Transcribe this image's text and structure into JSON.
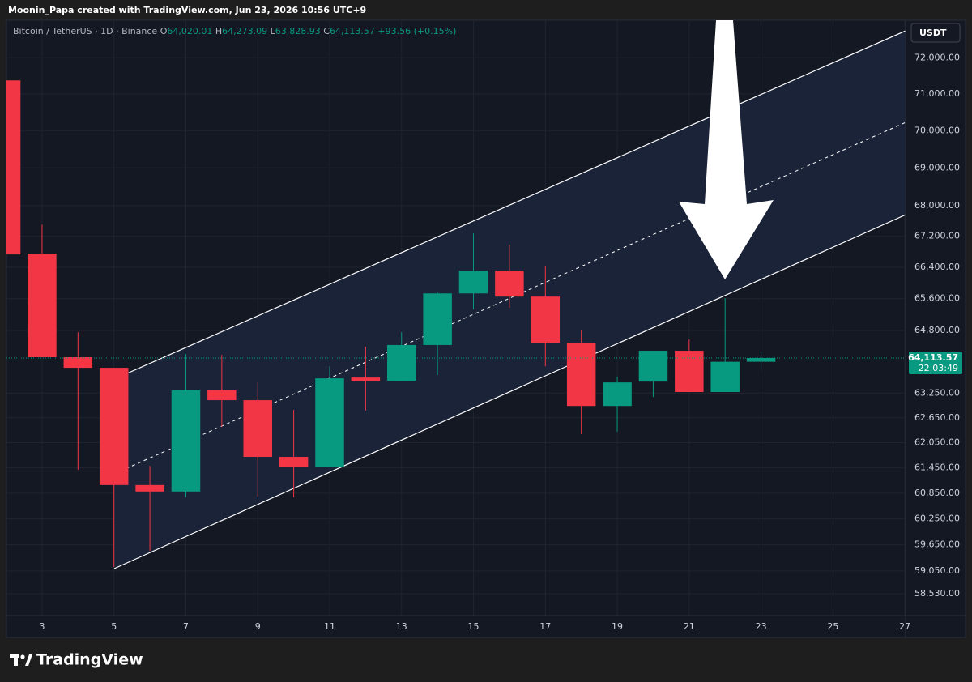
{
  "header": "Moonin_Papa created with TradingView.com, Jun 23, 2026 10:56 UTC+9",
  "brand": "TradingView",
  "chart_data": {
    "type": "candlestick",
    "title": "Bitcoin / TetherUS · 1D · Binance",
    "ohlc_legend": [
      {
        "key": "O",
        "label": "64,020.01"
      },
      {
        "key": "H",
        "label": "64,273.09"
      },
      {
        "key": "L",
        "label": "63,828.93"
      },
      {
        "key": "C",
        "label": "64,113.57"
      }
    ],
    "change_label": "+93.56 (+0.15%)",
    "currency": "USDT",
    "last_price_label": "64,113.57",
    "countdown": "22:03:49",
    "x": [
      2,
      3,
      4,
      5,
      6,
      7,
      8,
      9,
      10,
      11,
      12,
      13,
      14,
      15,
      16,
      17,
      18,
      19,
      20,
      21,
      22,
      23
    ],
    "open": [
      71372,
      66752,
      64133,
      63871,
      61042,
      60890,
      63317,
      63077,
      61711,
      61478,
      63631,
      63551,
      64436,
      65733,
      66312,
      65653,
      64493,
      62936,
      63531,
      64293,
      63276,
      64020.01
    ],
    "high": [
      71372,
      67506,
      64757,
      63871,
      61496,
      64212,
      64192,
      63511,
      62842,
      63907,
      64396,
      64757,
      65776,
      67275,
      66982,
      66439,
      64797,
      63650,
      64293,
      64574,
      65612,
      64273.09
    ],
    "low": [
      66731,
      64133,
      61402,
      59141,
      59515,
      60756,
      62431,
      60775,
      60756,
      61478,
      62822,
      63551,
      63692,
      65327,
      65368,
      63907,
      62253,
      62313,
      63156,
      63276,
      63276,
      63828.93
    ],
    "close": [
      66731,
      64133,
      63871,
      61042,
      60890,
      63317,
      63077,
      61711,
      61478,
      63611,
      63551,
      64436,
      65733,
      66312,
      65653,
      64493,
      62936,
      63511,
      64293,
      63276,
      64020,
      64113.57
    ],
    "up_color": "#089981",
    "down_color": "#f23645",
    "log_scale": true,
    "grid": true,
    "xlim": [
      2.01,
      27.02
    ],
    "ylim": [
      58040,
      73050
    ],
    "xticks": [
      3,
      5,
      7,
      9,
      11,
      13,
      15,
      17,
      19,
      21,
      23,
      25,
      27
    ],
    "yticks": [
      {
        "value": 72000,
        "label": "72,000.00"
      },
      {
        "value": 71000,
        "label": "71,000.00"
      },
      {
        "value": 70000,
        "label": "70,000.00"
      },
      {
        "value": 69000,
        "label": "69,000.00"
      },
      {
        "value": 68000,
        "label": "68,000.00"
      },
      {
        "value": 67200,
        "label": "67,200.00"
      },
      {
        "value": 66400,
        "label": "66,400.00"
      },
      {
        "value": 65600,
        "label": "65,600.00"
      },
      {
        "value": 64800,
        "label": "64,800.00"
      },
      {
        "value": 63250,
        "label": "63,250.00"
      },
      {
        "value": 62650,
        "label": "62,650.00"
      },
      {
        "value": 62050,
        "label": "62,050.00"
      },
      {
        "value": 61450,
        "label": "61,450.00"
      },
      {
        "value": 60850,
        "label": "60,850.00"
      },
      {
        "value": 60250,
        "label": "60,250.00"
      },
      {
        "value": 59650,
        "label": "59,650.00"
      },
      {
        "value": 59050,
        "label": "59,050.00"
      },
      {
        "value": 58530,
        "label": "58,530.00"
      }
    ]
  }
}
